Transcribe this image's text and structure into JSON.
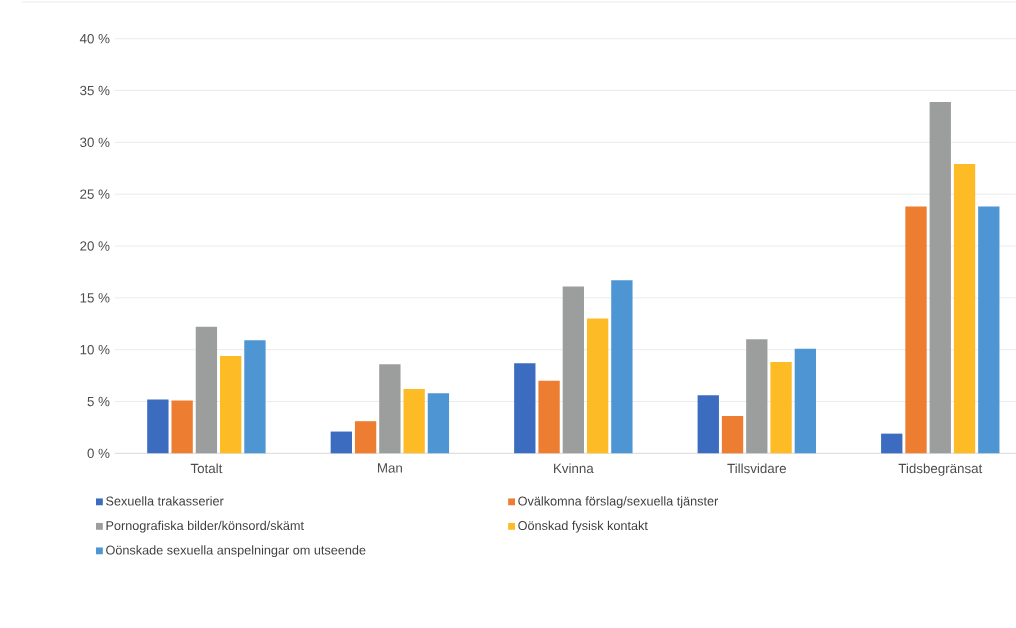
{
  "chart_data": {
    "type": "bar",
    "categories": [
      "Totalt",
      "Man",
      "Kvinna",
      "Tillsvidare",
      "Tidsbegränsat"
    ],
    "series": [
      {
        "name": "Sexuella trakasserier",
        "color": "#3b6cbf",
        "values": [
          5.2,
          2.1,
          8.7,
          5.6,
          1.9
        ]
      },
      {
        "name": "Ovälkomna förslag/sexuella tjänster",
        "color": "#ed7d31",
        "values": [
          5.1,
          3.1,
          7.0,
          3.6,
          23.8
        ]
      },
      {
        "name": "Pornografiska bilder/könsord/skämt",
        "color": "#9c9e9e",
        "values": [
          12.2,
          8.6,
          16.1,
          11.0,
          33.9
        ]
      },
      {
        "name": "Oönskad fysisk kontakt",
        "color": "#fdbb26",
        "values": [
          9.4,
          6.2,
          13.0,
          8.8,
          27.9
        ]
      },
      {
        "name": "Oönskade sexuella anspelningar om utseende",
        "color": "#4d96d3",
        "values": [
          10.9,
          5.8,
          16.7,
          10.1,
          23.8
        ]
      }
    ],
    "ylim": [
      0,
      40
    ],
    "yticks": [
      {
        "value": 0,
        "label": "0 %"
      },
      {
        "value": 5,
        "label": "5 %"
      },
      {
        "value": 10,
        "label": "10 %"
      },
      {
        "value": 15,
        "label": "15 %"
      },
      {
        "value": 20,
        "label": "20 %"
      },
      {
        "value": 25,
        "label": "25 %"
      },
      {
        "value": 30,
        "label": "30 %"
      },
      {
        "value": 35,
        "label": "35 %"
      },
      {
        "value": 40,
        "label": "40 %"
      }
    ],
    "grid": "y",
    "legend": "bottom"
  }
}
